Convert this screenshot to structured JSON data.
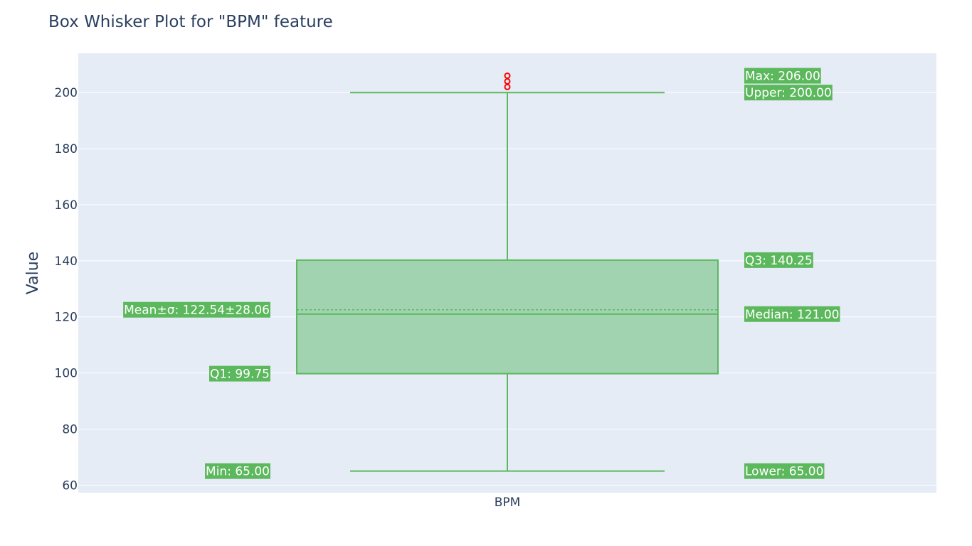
{
  "chart_data": {
    "type": "box",
    "title": "Box Whisker Plot for \"BPM\" feature",
    "ylabel": "Value",
    "xlabel": "",
    "categories": [
      "BPM"
    ],
    "ylim": [
      57.3,
      214
    ],
    "yticks": [
      60,
      80,
      100,
      120,
      140,
      160,
      180,
      200
    ],
    "grid": true,
    "box": {
      "name": "BPM",
      "min": 65.0,
      "lower_fence": 65.0,
      "q1": 99.75,
      "median": 121.0,
      "q3": 140.25,
      "upper_fence": 200.0,
      "max": 206.0,
      "mean": 122.54,
      "std": 28.06,
      "outliers": [
        202,
        204,
        206
      ]
    },
    "annotations": [
      {
        "side": "left",
        "value": 122.54,
        "text": "Mean±σ: 122.54±28.06"
      },
      {
        "side": "left",
        "value": 99.75,
        "text": "Q1: 99.75"
      },
      {
        "side": "left",
        "value": 65.0,
        "text": "Min: 65.00"
      },
      {
        "side": "right",
        "value": 206.0,
        "text": "Max: 206.00"
      },
      {
        "side": "right",
        "value": 200.0,
        "text": "Upper: 200.00"
      },
      {
        "side": "right",
        "value": 140.25,
        "text": "Q3: 140.25"
      },
      {
        "side": "right",
        "value": 121.0,
        "text": "Median: 121.00"
      },
      {
        "side": "right",
        "value": 65.0,
        "text": "Lower: 65.00"
      }
    ],
    "colors": {
      "plot_bg": "#e5ecf6",
      "grid": "#ffffff",
      "box_line": "#5cb85c",
      "box_fill": "#a1d3b0",
      "outlier": "#ff0000",
      "annotation_bg": "#5cb85c",
      "text": "#2a3f5f"
    }
  }
}
